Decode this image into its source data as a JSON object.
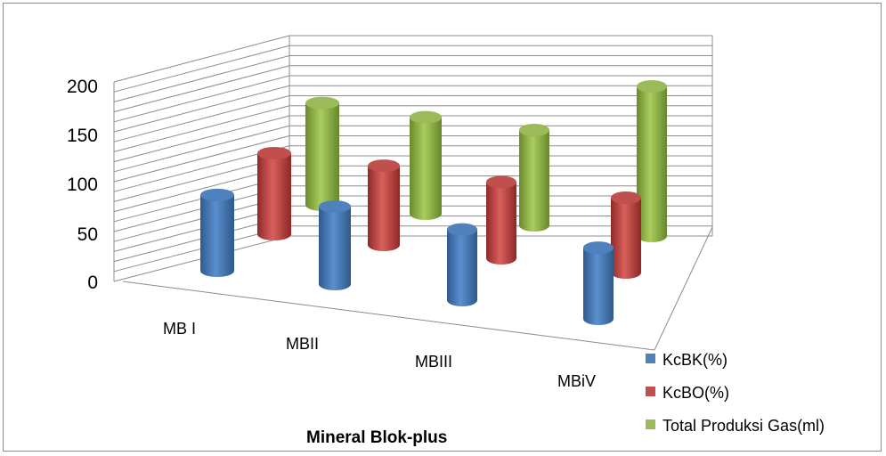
{
  "chart_data": {
    "type": "bar",
    "style": "3d-cylinder",
    "categories": [
      "MB I",
      "MBII",
      "MBIII",
      "MBiV"
    ],
    "series": [
      {
        "name": "KcBK(%)",
        "values": [
          65,
          68,
          64,
          66
        ],
        "color": "#4f81bd"
      },
      {
        "name": "KcBO(%)",
        "values": [
          70,
          70,
          69,
          70
        ],
        "color": "#c0504d"
      },
      {
        "name": "Total Produksi Gas(ml)",
        "values": [
          88,
          86,
          87,
          140
        ],
        "color": "#9bbb59"
      }
    ],
    "yticks": [
      "0",
      "50",
      "100",
      "150",
      "200"
    ],
    "ylim": [
      0,
      200
    ],
    "xlabel": "Mineral Blok-plus",
    "ylabel": "",
    "title": "",
    "grid": true,
    "legend_position": "bottom-right"
  }
}
